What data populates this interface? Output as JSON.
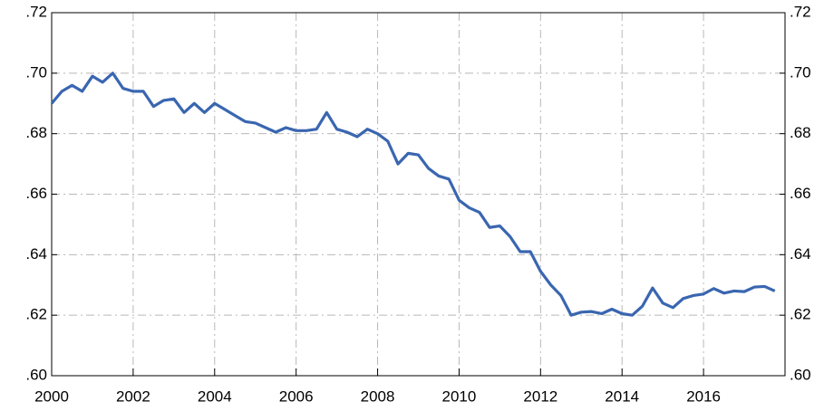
{
  "chart_data": {
    "type": "line",
    "x": [
      2000,
      2000.25,
      2000.5,
      2000.75,
      2001,
      2001.25,
      2001.5,
      2001.75,
      2002,
      2002.25,
      2002.5,
      2002.75,
      2003,
      2003.25,
      2003.5,
      2003.75,
      2004,
      2004.25,
      2004.5,
      2004.75,
      2005,
      2005.25,
      2005.5,
      2005.75,
      2006,
      2006.25,
      2006.5,
      2006.75,
      2007,
      2007.25,
      2007.5,
      2007.75,
      2008,
      2008.25,
      2008.5,
      2008.75,
      2009,
      2009.25,
      2009.5,
      2009.75,
      2010,
      2010.25,
      2010.5,
      2010.75,
      2011,
      2011.25,
      2011.5,
      2011.75,
      2012,
      2012.25,
      2012.5,
      2012.75,
      2013,
      2013.25,
      2013.5,
      2013.75,
      2014,
      2014.25,
      2014.5,
      2014.75,
      2015,
      2015.25,
      2015.5,
      2015.75,
      2016,
      2016.25,
      2016.5,
      2016.75,
      2017,
      2017.25,
      2017.5,
      2017.75
    ],
    "series": [
      {
        "color": "#3a66b0",
        "values": [
          0.69,
          0.694,
          0.696,
          0.694,
          0.699,
          0.697,
          0.7,
          0.695,
          0.694,
          0.694,
          0.689,
          0.691,
          0.6915,
          0.687,
          0.69,
          0.687,
          0.69,
          0.688,
          0.686,
          0.684,
          0.6835,
          0.682,
          0.6805,
          0.682,
          0.681,
          0.681,
          0.6815,
          0.687,
          0.6815,
          0.6805,
          0.679,
          0.6815,
          0.68,
          0.6775,
          0.67,
          0.6735,
          0.673,
          0.6685,
          0.666,
          0.665,
          0.658,
          0.6555,
          0.654,
          0.649,
          0.6495,
          0.646,
          0.641,
          0.641,
          0.6345,
          0.63,
          0.6265,
          0.62,
          0.621,
          0.6212,
          0.6205,
          0.622,
          0.6205,
          0.62,
          0.623,
          0.629,
          0.624,
          0.6225,
          0.6255,
          0.6265,
          0.627,
          0.6288,
          0.6273,
          0.628,
          0.6278,
          0.6293,
          0.6295,
          0.628
        ]
      }
    ],
    "xlim": [
      2000,
      2018
    ],
    "xticks": [
      2000,
      2002,
      2004,
      2006,
      2008,
      2010,
      2012,
      2014,
      2016
    ],
    "ylim": [
      0.6,
      0.72
    ],
    "yticks": [
      {
        "value": 0.6,
        "label": ".60"
      },
      {
        "value": 0.62,
        "label": ".62"
      },
      {
        "value": 0.64,
        "label": ".64"
      },
      {
        "value": 0.66,
        "label": ".66"
      },
      {
        "value": 0.68,
        "label": ".68"
      },
      {
        "value": 0.7,
        "label": ".70"
      },
      {
        "value": 0.72,
        "label": ".72"
      }
    ],
    "grid": true
  }
}
